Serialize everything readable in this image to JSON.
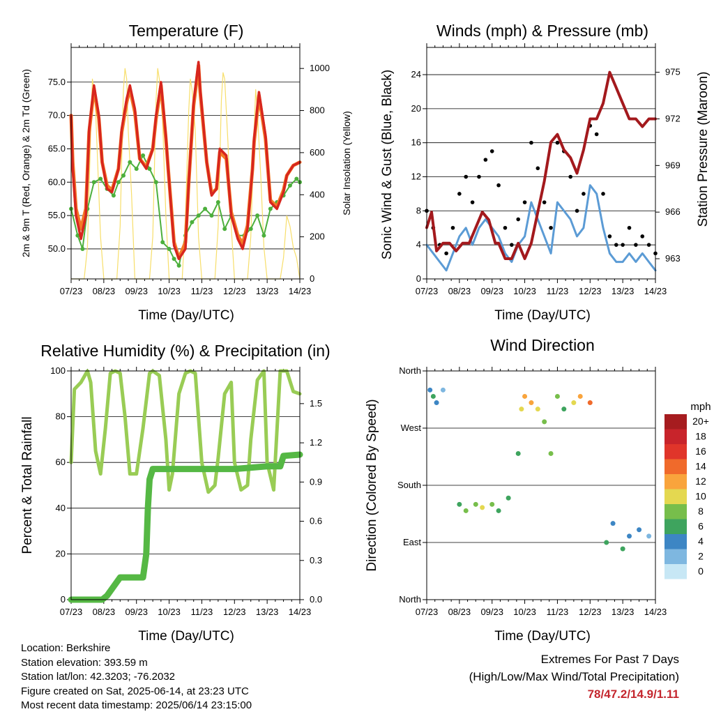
{
  "panels": {
    "temperature": {
      "title": "Temperature (F)",
      "ylabel": "2m & 9m T (Red, Orange) & 2m Td (Green)",
      "y2label": "Solar Insolation (Yellow)",
      "xlabel": "Time (Day/UTC)"
    },
    "winds": {
      "title": "Winds (mph) & Pressure (mb)",
      "ylabel": "Sonic Wind & Gust (Blue, Black)",
      "y2label": "Station Pressure (Maroon)",
      "xlabel": "Time (Day/UTC)"
    },
    "humidity": {
      "title": "Relative Humidity (%) & Precipitation (in)",
      "ylabel": "Percent & Total Rainfall",
      "xlabel": "Time (Day/UTC)"
    },
    "direction": {
      "title": "Wind Direction",
      "ylabel": "Direction (Colored By Speed)",
      "xlabel": "Time (Day/UTC)",
      "legend_title": "mph"
    }
  },
  "info": {
    "location": "Location: Berkshire",
    "elevation": "Station elevation: 393.59 m",
    "latlon": "Station lat/lon: 42.3203; -76.2032",
    "created": "Figure created on Sat, 2025-06-14, at 23:23 UTC",
    "timestamp": "Most recent data timestamp: 2025/06/14 23:15:00"
  },
  "extremes": {
    "line1": "Extremes For Past 7 Days",
    "line2": "(High/Low/Max Wind/Total Precipitation)",
    "values": "78/47.2/14.9/1.11"
  },
  "colors": {
    "temp2m": "#d7261e",
    "temp9m": "#f47a26",
    "dewpoint": "#4caf3c",
    "solar": "#f7de6a",
    "gust": "#000000",
    "wind": "#5b9bd5",
    "pressure": "#a3191d",
    "rh": "#99cc55",
    "precip": "#55b844"
  },
  "chart_data": [
    {
      "type": "line",
      "title": "Temperature (F)",
      "x_ticks": [
        "07/23",
        "08/23",
        "09/23",
        "10/23",
        "11/23",
        "12/23",
        "13/23",
        "14/23"
      ],
      "xlim": [
        0,
        7
      ],
      "ylim": [
        45.5,
        80.2
      ],
      "y_ticks": [
        "50.0",
        "55.0",
        "60.0",
        "65.0",
        "70.0",
        "75.0"
      ],
      "y2lim": [
        0,
        1100
      ],
      "y2_ticks": [
        "0",
        "200",
        "400",
        "600",
        "800",
        "1000"
      ],
      "series": [
        {
          "name": "2m T",
          "x": [
            0,
            0.05,
            0.15,
            0.3,
            0.45,
            0.55,
            0.7,
            0.85,
            0.95,
            1.1,
            1.25,
            1.45,
            1.55,
            1.7,
            1.8,
            1.95,
            2.1,
            2.3,
            2.5,
            2.6,
            2.75,
            2.9,
            2.97,
            3.15,
            3.3,
            3.5,
            3.6,
            3.75,
            3.9,
            3.95,
            4.15,
            4.3,
            4.45,
            4.55,
            4.75,
            4.9,
            5.1,
            5.25,
            5.4,
            5.55,
            5.6,
            5.75,
            5.95,
            6.1,
            6.3,
            6.5,
            6.6,
            6.8,
            7.0
          ],
          "y": [
            70,
            62,
            55,
            51.5,
            55,
            68,
            74.5,
            70,
            63,
            59,
            58.5,
            62,
            68,
            72.5,
            74.5,
            71,
            63.5,
            62,
            65,
            70,
            75,
            67,
            62,
            50.5,
            48.5,
            50,
            60,
            72,
            78,
            74,
            63,
            58,
            59,
            65,
            64,
            55,
            51.5,
            50,
            53,
            62,
            66.5,
            73.5,
            67,
            57,
            56,
            58.5,
            61,
            62.5,
            63
          ]
        },
        {
          "name": "9m T",
          "x": [
            0,
            0.05,
            0.15,
            0.3,
            0.45,
            0.55,
            0.7,
            0.85,
            0.95,
            1.1,
            1.25,
            1.45,
            1.55,
            1.7,
            1.8,
            1.95,
            2.1,
            2.3,
            2.5,
            2.6,
            2.75,
            2.9,
            2.97,
            3.15,
            3.3,
            3.5,
            3.6,
            3.75,
            3.9,
            3.95,
            4.15,
            4.3,
            4.45,
            4.55,
            4.75,
            4.9,
            5.1,
            5.25,
            5.4,
            5.55,
            5.6,
            5.75,
            5.95,
            6.1,
            6.3,
            6.5,
            6.6,
            6.8,
            7.0
          ],
          "y": [
            70,
            63,
            56,
            53,
            56,
            67.5,
            74,
            69.5,
            63,
            59.5,
            58.8,
            62,
            67.5,
            72,
            74,
            70.5,
            63.5,
            62.3,
            65,
            69.5,
            74.5,
            66.5,
            62,
            51,
            48.6,
            51,
            60,
            71.5,
            77.5,
            73.5,
            63,
            58.3,
            59,
            64.5,
            63.5,
            55.5,
            52,
            50.8,
            53.5,
            62,
            66,
            73,
            66.5,
            57.3,
            56.3,
            58.8,
            61,
            62.5,
            63
          ]
        },
        {
          "name": "2m Td",
          "x": [
            0,
            0.2,
            0.35,
            0.5,
            0.7,
            0.9,
            1.1,
            1.3,
            1.45,
            1.6,
            1.8,
            2.0,
            2.2,
            2.4,
            2.6,
            2.8,
            3.0,
            3.15,
            3.3,
            3.5,
            3.7,
            3.9,
            4.1,
            4.3,
            4.5,
            4.7,
            4.9,
            5.1,
            5.3,
            5.5,
            5.7,
            5.9,
            6.1,
            6.3,
            6.5,
            6.7,
            6.9,
            7.0
          ],
          "y": [
            56,
            52,
            50,
            56,
            60,
            60.5,
            59,
            58,
            60,
            61,
            63,
            62,
            64,
            62,
            60,
            51,
            50,
            48.5,
            47.5,
            52,
            54,
            55,
            56,
            55,
            57,
            53,
            55,
            52,
            52,
            53,
            55,
            52,
            56,
            57,
            58,
            59.5,
            60.5,
            60
          ]
        },
        {
          "name": "Solar Insolation",
          "axis": "y2",
          "x": [
            0,
            0.4,
            0.5,
            0.6,
            0.65,
            0.7,
            0.75,
            0.8,
            0.9,
            1.0,
            1.4,
            1.5,
            1.6,
            1.65,
            1.7,
            1.75,
            1.85,
            1.95,
            2.4,
            2.5,
            2.6,
            2.65,
            2.7,
            2.8,
            2.9,
            3.0,
            3.4,
            3.5,
            3.6,
            3.65,
            3.7,
            3.8,
            3.9,
            4.0,
            4.4,
            4.5,
            4.6,
            4.65,
            4.7,
            4.8,
            4.9,
            5.0,
            5.4,
            5.5,
            5.6,
            5.65,
            5.7,
            5.8,
            5.9,
            6.0,
            6.4,
            6.5,
            6.6,
            6.7,
            6.8,
            6.9,
            7.0
          ],
          "y": [
            0,
            0,
            150,
            700,
            950,
            900,
            800,
            600,
            200,
            0,
            0,
            250,
            900,
            1000,
            950,
            700,
            400,
            0,
            0,
            200,
            850,
            1000,
            950,
            750,
            300,
            0,
            0,
            300,
            800,
            950,
            900,
            700,
            200,
            0,
            0,
            250,
            850,
            980,
            950,
            650,
            250,
            0,
            0,
            200,
            700,
            900,
            800,
            500,
            150,
            0,
            0,
            100,
            300,
            250,
            150,
            100,
            0
          ]
        }
      ]
    },
    {
      "type": "line",
      "title": "Winds (mph) & Pressure (mb)",
      "x_ticks": [
        "07/23",
        "08/23",
        "09/23",
        "10/23",
        "11/23",
        "12/23",
        "13/23",
        "14/23"
      ],
      "xlim": [
        0,
        7
      ],
      "ylim": [
        0,
        27.2
      ],
      "y_ticks": [
        "0",
        "4",
        "8",
        "12",
        "16",
        "20",
        "24"
      ],
      "y2lim": [
        961.7,
        976.6
      ],
      "y2_ticks": [
        "963",
        "966",
        "969",
        "972",
        "975"
      ],
      "series": [
        {
          "name": "Sonic Wind",
          "x": [
            0,
            0.2,
            0.4,
            0.6,
            0.8,
            1.0,
            1.2,
            1.4,
            1.6,
            1.8,
            2.0,
            2.2,
            2.4,
            2.6,
            2.8,
            3.0,
            3.2,
            3.4,
            3.6,
            3.8,
            4.0,
            4.2,
            4.4,
            4.6,
            4.8,
            5.0,
            5.2,
            5.4,
            5.6,
            5.8,
            6.0,
            6.2,
            6.4,
            6.6,
            6.8,
            7.0
          ],
          "y": [
            4,
            3,
            2,
            1,
            3,
            5,
            6,
            4,
            6,
            7,
            6,
            5,
            3,
            2,
            4,
            5,
            9,
            7,
            5,
            3,
            9,
            8,
            7,
            5,
            6,
            11,
            10,
            6,
            3,
            2,
            2,
            3,
            2,
            3,
            2,
            1
          ]
        },
        {
          "name": "Gust",
          "x": [
            0,
            0.2,
            0.4,
            0.6,
            0.8,
            1.0,
            1.2,
            1.4,
            1.6,
            1.8,
            2.0,
            2.2,
            2.4,
            2.6,
            2.8,
            3.0,
            3.2,
            3.4,
            3.6,
            3.8,
            4.0,
            4.2,
            4.4,
            4.6,
            4.8,
            5.0,
            5.2,
            5.4,
            5.6,
            5.8,
            6.0,
            6.2,
            6.4,
            6.6,
            6.8,
            7.0
          ],
          "y": [
            8,
            6,
            4,
            3,
            6,
            10,
            12,
            9,
            12,
            14,
            15,
            11,
            6,
            4,
            7,
            9,
            16,
            13,
            9,
            6,
            16,
            15,
            12,
            8,
            10,
            18,
            17,
            10,
            5,
            4,
            4,
            6,
            4,
            5,
            4,
            3
          ]
        },
        {
          "name": "Station Pressure",
          "axis": "y2",
          "x": [
            0,
            0.15,
            0.3,
            0.5,
            0.7,
            0.9,
            1.1,
            1.3,
            1.5,
            1.7,
            1.9,
            2.1,
            2.2,
            2.4,
            2.6,
            2.8,
            3.0,
            3.2,
            3.4,
            3.6,
            3.8,
            4.0,
            4.2,
            4.4,
            4.6,
            4.8,
            5.0,
            5.2,
            5.4,
            5.6,
            5.8,
            6.0,
            6.2,
            6.4,
            6.6,
            6.8,
            7.0
          ],
          "y": [
            965,
            966,
            963.5,
            964,
            964,
            963.5,
            964,
            964,
            965,
            966,
            965.5,
            964,
            964,
            963,
            963,
            964,
            963,
            964,
            966,
            968,
            970.5,
            971,
            970,
            969.5,
            968.5,
            970,
            972,
            972,
            973,
            975,
            974,
            973,
            972,
            972,
            971.5,
            972,
            972
          ]
        }
      ]
    },
    {
      "type": "line",
      "title": "Relative Humidity (%) & Precipitation (in)",
      "x_ticks": [
        "07/23",
        "08/23",
        "09/23",
        "10/23",
        "11/23",
        "12/23",
        "13/23",
        "14/23"
      ],
      "xlim": [
        0,
        7
      ],
      "ylim": [
        0,
        100
      ],
      "y_ticks": [
        "0",
        "20",
        "40",
        "60",
        "80",
        "100"
      ],
      "y2lim": [
        0,
        1.75
      ],
      "y2_ticks": [
        "0.0",
        "0.3",
        "0.6",
        "0.9",
        "1.2",
        "1.5"
      ],
      "series": [
        {
          "name": "Relative Humidity",
          "x": [
            0,
            0.1,
            0.3,
            0.5,
            0.6,
            0.75,
            0.9,
            1.05,
            1.2,
            1.35,
            1.5,
            1.65,
            1.8,
            2.0,
            2.2,
            2.4,
            2.5,
            2.7,
            2.9,
            3.0,
            3.1,
            3.3,
            3.5,
            3.65,
            3.8,
            4.0,
            4.2,
            4.4,
            4.5,
            4.7,
            4.9,
            5.0,
            5.2,
            5.4,
            5.5,
            5.7,
            5.9,
            6.0,
            6.2,
            6.4,
            6.6,
            6.8,
            7.0
          ],
          "y": [
            60,
            92,
            95,
            100,
            95,
            65,
            55,
            75,
            99,
            100,
            99,
            80,
            55,
            55,
            75,
            99,
            100,
            98,
            70,
            48,
            55,
            90,
            99,
            100,
            99,
            60,
            47,
            50,
            62,
            90,
            95,
            60,
            48,
            50,
            70,
            96,
            100,
            60,
            48,
            100,
            100,
            91,
            90
          ]
        },
        {
          "name": "Total Rainfall",
          "axis": "y2",
          "x": [
            0,
            0.5,
            0.95,
            1.1,
            1.3,
            1.5,
            1.7,
            2.0,
            2.2,
            2.3,
            2.35,
            2.4,
            2.5,
            3.0,
            4.0,
            5.0,
            6.0,
            6.4,
            6.5,
            7.0
          ],
          "y": [
            0,
            0,
            0,
            0.03,
            0.1,
            0.17,
            0.17,
            0.17,
            0.17,
            0.35,
            0.7,
            0.92,
            1.0,
            1.0,
            1.0,
            1.0,
            1.02,
            1.02,
            1.1,
            1.11
          ]
        }
      ]
    },
    {
      "type": "scatter",
      "title": "Wind Direction",
      "x_ticks": [
        "07/23",
        "08/23",
        "09/23",
        "10/23",
        "11/23",
        "12/23",
        "13/23",
        "14/23"
      ],
      "xlim": [
        0,
        7
      ],
      "y_ticks": [
        "North",
        "West",
        "South",
        "East",
        "North"
      ],
      "y_values_deg": [
        360,
        270,
        180,
        90,
        0
      ],
      "color_scale_mph": [
        "20+",
        "18",
        "16",
        "14",
        "12",
        "10",
        "8",
        "6",
        "4",
        "2",
        "0"
      ],
      "color_scale_colors": [
        "#a61c1f",
        "#c8242b",
        "#e0352a",
        "#f06a2b",
        "#f9a43c",
        "#e4d850",
        "#77be4b",
        "#3ea45e",
        "#3d86c4",
        "#7eb7e0",
        "#c7e7f5"
      ],
      "series": [
        {
          "name": "Direction",
          "x": [
            0.1,
            0.2,
            0.3,
            0.5,
            1.0,
            1.2,
            1.5,
            1.7,
            2.0,
            2.2,
            2.5,
            2.8,
            2.9,
            3.0,
            3.2,
            3.4,
            3.6,
            3.8,
            4.0,
            4.2,
            4.5,
            4.7,
            5.0,
            5.5,
            5.7,
            6.0,
            6.2,
            6.5,
            6.8
          ],
          "y": [
            330,
            320,
            310,
            330,
            150,
            140,
            150,
            145,
            150,
            140,
            160,
            230,
            300,
            320,
            310,
            300,
            280,
            230,
            320,
            300,
            310,
            320,
            310,
            90,
            120,
            80,
            100,
            110,
            100
          ],
          "speed": [
            4,
            5,
            3,
            2,
            6,
            7,
            8,
            9,
            7,
            6,
            5,
            6,
            10,
            12,
            11,
            9,
            8,
            7,
            8,
            6,
            9,
            12,
            13,
            5,
            4,
            6,
            4,
            3,
            2
          ]
        }
      ]
    }
  ]
}
